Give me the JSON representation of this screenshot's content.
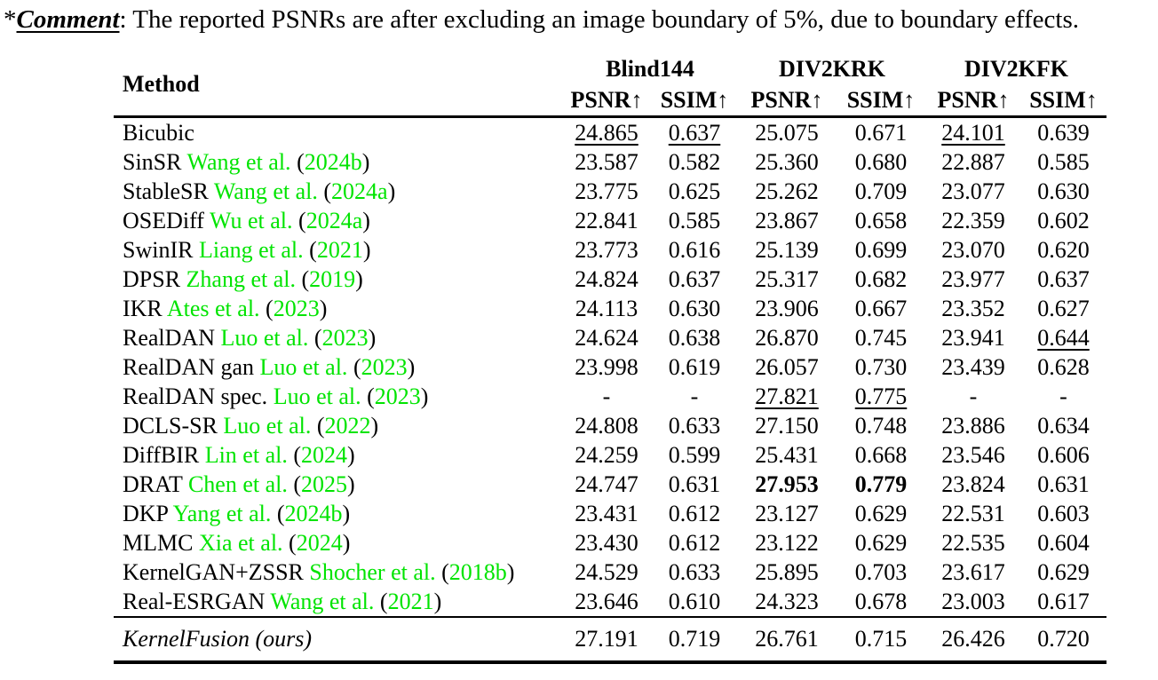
{
  "comment": {
    "prefix": "*",
    "label": "Comment",
    "rest": ": The reported PSNRs are after excluding an image boundary of 5%, due to boundary effects."
  },
  "colors": {
    "citation_green": "#00e400",
    "text": "#000000",
    "background": "#ffffff"
  },
  "table": {
    "method_header": "Method",
    "groups": [
      {
        "label": "Blind144"
      },
      {
        "label": "DIV2KRK"
      },
      {
        "label": "DIV2KFK"
      }
    ],
    "metric_headers": [
      "PSNR↑",
      "SSIM↑",
      "PSNR↑",
      "SSIM↑",
      "PSNR↑",
      "SSIM↑"
    ],
    "rows": [
      {
        "name": "Bicubic",
        "cite": "",
        "open": "",
        "year": "",
        "close": "",
        "v": [
          "24.865",
          "0.637",
          "25.075",
          "0.671",
          "24.101",
          "0.639"
        ],
        "s": [
          "u",
          "u",
          "",
          "",
          "u",
          ""
        ]
      },
      {
        "name": "SinSR",
        "cite": "Wang et al.",
        "open": "(",
        "year": "2024b",
        "close": ")",
        "v": [
          "23.587",
          "0.582",
          "25.360",
          "0.680",
          "22.887",
          "0.585"
        ],
        "s": [
          "",
          "",
          "",
          "",
          "",
          ""
        ]
      },
      {
        "name": "StableSR",
        "cite": "Wang et al.",
        "open": "(",
        "year": "2024a",
        "close": ")",
        "v": [
          "23.775",
          "0.625",
          "25.262",
          "0.709",
          "23.077",
          "0.630"
        ],
        "s": [
          "",
          "",
          "",
          "",
          "",
          ""
        ]
      },
      {
        "name": "OSEDiff",
        "cite": "Wu et al.",
        "open": "(",
        "year": "2024a",
        "close": ")",
        "v": [
          "22.841",
          "0.585",
          "23.867",
          "0.658",
          "22.359",
          "0.602"
        ],
        "s": [
          "",
          "",
          "",
          "",
          "",
          ""
        ]
      },
      {
        "name": "SwinIR",
        "cite": "Liang et al.",
        "open": "(",
        "year": "2021",
        "close": ")",
        "v": [
          "23.773",
          "0.616",
          "25.139",
          "0.699",
          "23.070",
          "0.620"
        ],
        "s": [
          "",
          "",
          "",
          "",
          "",
          ""
        ]
      },
      {
        "name": "DPSR",
        "cite": "Zhang et al.",
        "open": "(",
        "year": "2019",
        "close": ")",
        "v": [
          "24.824",
          "0.637",
          "25.317",
          "0.682",
          "23.977",
          "0.637"
        ],
        "s": [
          "",
          "",
          "",
          "",
          "",
          ""
        ]
      },
      {
        "name": "IKR",
        "cite": "Ates et al.",
        "open": "(",
        "year": "2023",
        "close": ")",
        "v": [
          "24.113",
          "0.630",
          "23.906",
          "0.667",
          "23.352",
          "0.627"
        ],
        "s": [
          "",
          "",
          "",
          "",
          "",
          ""
        ]
      },
      {
        "name": "RealDAN",
        "cite": "Luo et al.",
        "open": "(",
        "year": "2023",
        "close": ")",
        "v": [
          "24.624",
          "0.638",
          "26.870",
          "0.745",
          "23.941",
          "0.644"
        ],
        "s": [
          "",
          "",
          "",
          "",
          "",
          "u"
        ]
      },
      {
        "name": "RealDAN gan",
        "cite": "Luo et al.",
        "open": "(",
        "year": "2023",
        "close": ")",
        "v": [
          "23.998",
          "0.619",
          "26.057",
          "0.730",
          "23.439",
          "0.628"
        ],
        "s": [
          "",
          "",
          "",
          "",
          "",
          ""
        ]
      },
      {
        "name": "RealDAN spec.",
        "cite": "Luo et al.",
        "open": "(",
        "year": "2023",
        "close": ")",
        "v": [
          "-",
          "-",
          "27.821",
          "0.775",
          "-",
          "-"
        ],
        "s": [
          "",
          "",
          "u",
          "u",
          "",
          ""
        ]
      },
      {
        "name": "DCLS-SR",
        "cite": "Luo et al.",
        "open": "(",
        "year": "2022",
        "close": ")",
        "v": [
          "24.808",
          "0.633",
          "27.150",
          "0.748",
          "23.886",
          "0.634"
        ],
        "s": [
          "",
          "",
          "",
          "",
          "",
          ""
        ]
      },
      {
        "name": "DiffBIR",
        "cite": "Lin et al.",
        "open": "(",
        "year": "2024",
        "close": ")",
        "v": [
          "24.259",
          "0.599",
          "25.431",
          "0.668",
          "23.546",
          "0.606"
        ],
        "s": [
          "",
          "",
          "",
          "",
          "",
          ""
        ]
      },
      {
        "name": "DRAT",
        "cite": "Chen et al.",
        "open": "(",
        "year": "2025",
        "close": ")",
        "v": [
          "24.747",
          "0.631",
          "27.953",
          "0.779",
          "23.824",
          "0.631"
        ],
        "s": [
          "",
          "",
          "b",
          "b",
          "",
          ""
        ]
      },
      {
        "name": "DKP",
        "cite": "Yang et al.",
        "open": "(",
        "year": "2024b",
        "close": ")",
        "v": [
          "23.431",
          "0.612",
          "23.127",
          "0.629",
          "22.531",
          "0.603"
        ],
        "s": [
          "",
          "",
          "",
          "",
          "",
          ""
        ]
      },
      {
        "name": "MLMC",
        "cite": "Xia et al.",
        "open": "(",
        "year": "2024",
        "close": ")",
        "v": [
          "23.430",
          "0.612",
          "23.122",
          "0.629",
          "22.535",
          "0.604"
        ],
        "s": [
          "",
          "",
          "",
          "",
          "",
          ""
        ]
      },
      {
        "name": "KernelGAN+ZSSR",
        "cite": "Shocher et al.",
        "open": "(",
        "year": "2018b",
        "close": ")",
        "v": [
          "24.529",
          "0.633",
          "25.895",
          "0.703",
          "23.617",
          "0.629"
        ],
        "s": [
          "",
          "",
          "",
          "",
          "",
          ""
        ]
      },
      {
        "name": "Real-ESRGAN",
        "cite": "Wang et al.",
        "open": "(",
        "year": "2021",
        "close": ")",
        "v": [
          "23.646",
          "0.610",
          "24.323",
          "0.678",
          "23.003",
          "0.617"
        ],
        "s": [
          "",
          "",
          "",
          "",
          "",
          ""
        ]
      }
    ],
    "final_row": {
      "name": "KernelFusion (ours)",
      "v": [
        "27.191",
        "0.719",
        "26.761",
        "0.715",
        "26.426",
        "0.720"
      ],
      "s": [
        "b",
        "b",
        "",
        "",
        "b",
        "b"
      ]
    }
  }
}
